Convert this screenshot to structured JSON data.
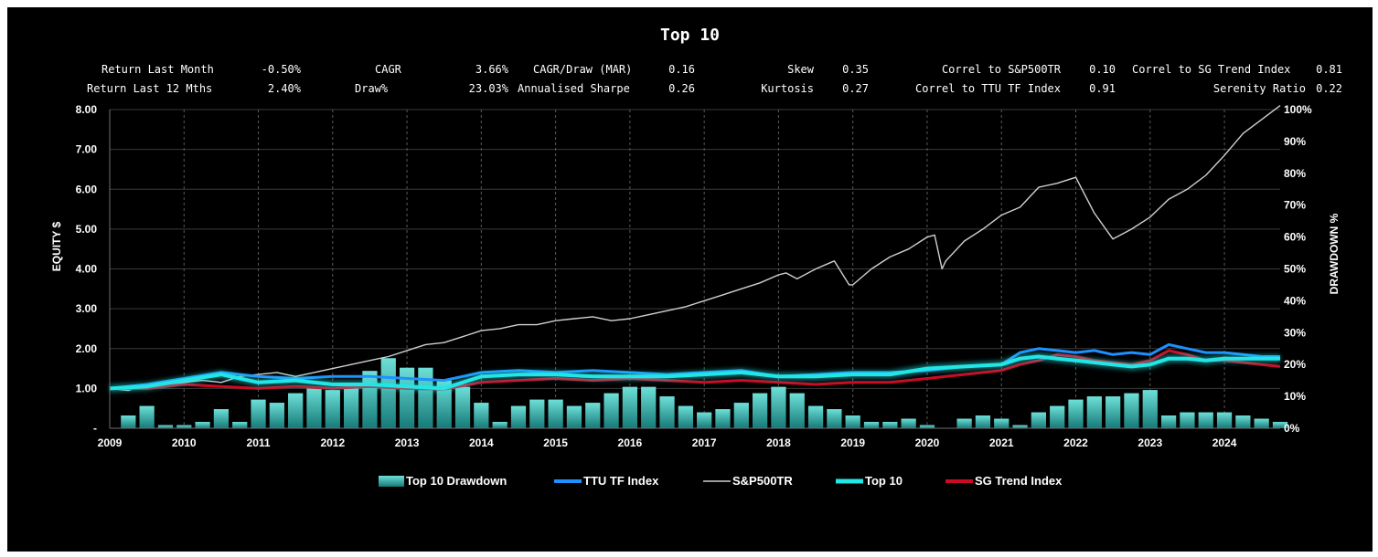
{
  "title": "Top 10",
  "stats": {
    "return_last_month_label": "Return Last Month",
    "return_last_month_value": "-0.50%",
    "return_last_12_label": "Return Last 12 Mths",
    "return_last_12_value": "2.40%",
    "cagr_label": "CAGR",
    "cagr_value": "3.66%",
    "draw_label": "Draw%",
    "draw_value": "23.03%",
    "cagr_draw_label": "CAGR/Draw (MAR)",
    "cagr_draw_value": "0.16",
    "sharpe_label": "Annualised Sharpe",
    "sharpe_value": "0.26",
    "skew_label": "Skew",
    "skew_value": "0.35",
    "kurtosis_label": "Kurtosis",
    "kurtosis_value": "0.27",
    "correl_sp_label": "Correl to S&P500TR",
    "correl_sp_value": "0.10",
    "correl_ttu_label": "Correl to TTU TF Index",
    "correl_ttu_value": "0.91",
    "correl_sg_label": "Correl to SG Trend Index",
    "correl_sg_value": "0.81",
    "serenity_label": "Serenity Ratio",
    "serenity_value": "0.22"
  },
  "colors": {
    "background": "#000000",
    "grid": "#3a3a3a",
    "drawdown": "#40c8c0",
    "ttu": "#1e90ff",
    "sp500": "#d0d0d0",
    "top10": "#22e6e6",
    "sg": "#cc0a24"
  },
  "chart_data": {
    "type": "line",
    "ylabel": "EQUITY $",
    "y2label": "DRAWDOWN %",
    "ylim": [
      0,
      8
    ],
    "y2lim": [
      0,
      100
    ],
    "yticks": [
      "-",
      "1.00",
      "2.00",
      "3.00",
      "4.00",
      "5.00",
      "6.00",
      "7.00",
      "8.00"
    ],
    "y2ticks": [
      "0%",
      "10%",
      "20%",
      "30%",
      "40%",
      "50%",
      "60%",
      "70%",
      "80%",
      "90%",
      "100%"
    ],
    "xticks": [
      "2009",
      "2010",
      "2011",
      "2012",
      "2013",
      "2014",
      "2015",
      "2016",
      "2017",
      "2018",
      "2019",
      "2020",
      "2021",
      "2022",
      "2023",
      "2024"
    ],
    "xlim": [
      2009.0,
      2024.75
    ],
    "grid": true,
    "legend_position": "bottom",
    "series": [
      {
        "name": "S&P500TR",
        "axis": "left",
        "x": [
          2009.0,
          2009.25,
          2009.5,
          2009.75,
          2010.0,
          2010.25,
          2010.5,
          2010.75,
          2011.0,
          2011.25,
          2011.5,
          2011.75,
          2012.0,
          2012.25,
          2012.5,
          2012.75,
          2013.0,
          2013.25,
          2013.5,
          2013.75,
          2014.0,
          2014.25,
          2014.5,
          2014.75,
          2015.0,
          2015.25,
          2015.5,
          2015.75,
          2016.0,
          2016.25,
          2016.5,
          2016.75,
          2017.0,
          2017.25,
          2017.5,
          2017.75,
          2018.0,
          2018.1,
          2018.25,
          2018.5,
          2018.75,
          2018.95,
          2019.0,
          2019.25,
          2019.5,
          2019.75,
          2020.0,
          2020.1,
          2020.2,
          2020.25,
          2020.5,
          2020.75,
          2021.0,
          2021.25,
          2021.5,
          2021.75,
          2022.0,
          2022.25,
          2022.5,
          2022.75,
          2023.0,
          2023.25,
          2023.5,
          2023.75,
          2024.0,
          2024.25,
          2024.5,
          2024.75
        ],
        "values": [
          1.0,
          0.95,
          1.1,
          1.05,
          1.15,
          1.2,
          1.15,
          1.3,
          1.35,
          1.4,
          1.3,
          1.4,
          1.5,
          1.6,
          1.7,
          1.8,
          1.95,
          2.1,
          2.15,
          2.3,
          2.45,
          2.5,
          2.6,
          2.6,
          2.7,
          2.75,
          2.8,
          2.7,
          2.75,
          2.85,
          2.95,
          3.05,
          3.2,
          3.35,
          3.5,
          3.65,
          3.85,
          3.9,
          3.75,
          4.0,
          4.2,
          3.6,
          3.6,
          4.0,
          4.3,
          4.5,
          4.8,
          4.85,
          4.0,
          4.2,
          4.7,
          5.0,
          5.35,
          5.55,
          6.05,
          6.15,
          6.3,
          5.4,
          4.75,
          5.0,
          5.3,
          5.75,
          6.0,
          6.35,
          6.85,
          7.4,
          7.75,
          8.1
        ]
      },
      {
        "name": "TTU TF Index",
        "axis": "left",
        "x": [
          2009.0,
          2009.5,
          2010.0,
          2010.5,
          2011.0,
          2011.5,
          2012.0,
          2012.5,
          2013.0,
          2013.5,
          2014.0,
          2014.5,
          2015.0,
          2015.5,
          2016.0,
          2016.5,
          2017.0,
          2017.5,
          2018.0,
          2018.5,
          2019.0,
          2019.5,
          2020.0,
          2020.5,
          2021.0,
          2021.25,
          2021.5,
          2021.75,
          2022.0,
          2022.25,
          2022.5,
          2022.75,
          2023.0,
          2023.25,
          2023.5,
          2023.75,
          2024.0,
          2024.25,
          2024.5,
          2024.75
        ],
        "values": [
          1.0,
          1.1,
          1.25,
          1.4,
          1.3,
          1.25,
          1.3,
          1.3,
          1.25,
          1.2,
          1.4,
          1.45,
          1.4,
          1.45,
          1.4,
          1.35,
          1.4,
          1.45,
          1.3,
          1.35,
          1.4,
          1.4,
          1.45,
          1.55,
          1.6,
          1.9,
          2.0,
          1.95,
          1.9,
          1.95,
          1.85,
          1.9,
          1.85,
          2.1,
          2.0,
          1.9,
          1.9,
          1.85,
          1.8,
          1.8
        ]
      },
      {
        "name": "Top 10",
        "axis": "left",
        "x": [
          2009.0,
          2009.5,
          2010.0,
          2010.5,
          2011.0,
          2011.5,
          2012.0,
          2012.5,
          2013.0,
          2013.5,
          2014.0,
          2014.5,
          2015.0,
          2015.5,
          2016.0,
          2016.5,
          2017.0,
          2017.5,
          2018.0,
          2018.5,
          2019.0,
          2019.5,
          2020.0,
          2020.5,
          2021.0,
          2021.25,
          2021.5,
          2021.75,
          2022.0,
          2022.25,
          2022.5,
          2022.75,
          2023.0,
          2023.25,
          2023.5,
          2023.75,
          2024.0,
          2024.25,
          2024.5,
          2024.75
        ],
        "values": [
          1.0,
          1.05,
          1.2,
          1.35,
          1.15,
          1.2,
          1.1,
          1.1,
          1.05,
          1.0,
          1.3,
          1.35,
          1.35,
          1.3,
          1.3,
          1.3,
          1.35,
          1.4,
          1.3,
          1.3,
          1.35,
          1.35,
          1.5,
          1.55,
          1.6,
          1.75,
          1.8,
          1.75,
          1.7,
          1.65,
          1.6,
          1.55,
          1.6,
          1.75,
          1.75,
          1.7,
          1.75,
          1.75,
          1.75,
          1.75
        ]
      },
      {
        "name": "SG Trend Index",
        "axis": "left",
        "x": [
          2009.0,
          2009.5,
          2010.0,
          2010.5,
          2011.0,
          2011.5,
          2012.0,
          2012.5,
          2013.0,
          2013.5,
          2014.0,
          2014.5,
          2015.0,
          2015.5,
          2016.0,
          2016.5,
          2017.0,
          2017.5,
          2018.0,
          2018.5,
          2019.0,
          2019.5,
          2020.0,
          2020.5,
          2021.0,
          2021.25,
          2021.5,
          2021.75,
          2022.0,
          2022.25,
          2022.5,
          2022.75,
          2023.0,
          2023.25,
          2023.5,
          2023.75,
          2024.0,
          2024.25,
          2024.5,
          2024.75
        ],
        "values": [
          1.0,
          1.0,
          1.1,
          1.05,
          1.0,
          1.05,
          1.0,
          1.05,
          1.0,
          0.98,
          1.15,
          1.2,
          1.25,
          1.2,
          1.25,
          1.2,
          1.15,
          1.2,
          1.15,
          1.1,
          1.15,
          1.15,
          1.25,
          1.35,
          1.45,
          1.6,
          1.7,
          1.85,
          1.8,
          1.7,
          1.65,
          1.6,
          1.7,
          1.95,
          1.85,
          1.7,
          1.7,
          1.65,
          1.6,
          1.55
        ]
      }
    ],
    "drawdown": {
      "name": "Top 10 Drawdown",
      "axis": "right",
      "x": [
        2009.25,
        2009.5,
        2009.75,
        2010.0,
        2010.25,
        2010.5,
        2010.75,
        2011.0,
        2011.25,
        2011.5,
        2011.75,
        2012.0,
        2012.25,
        2012.5,
        2012.75,
        2013.0,
        2013.25,
        2013.5,
        2013.75,
        2014.0,
        2014.25,
        2014.5,
        2014.75,
        2015.0,
        2015.25,
        2015.5,
        2015.75,
        2016.0,
        2016.25,
        2016.5,
        2016.75,
        2017.0,
        2017.25,
        2017.5,
        2017.75,
        2018.0,
        2018.25,
        2018.5,
        2018.75,
        2019.0,
        2019.25,
        2019.5,
        2019.75,
        2020.0,
        2020.25,
        2020.5,
        2020.75,
        2021.0,
        2021.25,
        2021.5,
        2021.75,
        2022.0,
        2022.25,
        2022.5,
        2022.75,
        2023.0,
        2023.25,
        2023.5,
        2023.75,
        2024.0,
        2024.25,
        2024.5,
        2024.75
      ],
      "values": [
        4,
        7,
        1,
        1,
        2,
        6,
        2,
        9,
        8,
        11,
        13,
        12,
        13,
        18,
        22,
        19,
        19,
        15,
        13,
        8,
        2,
        7,
        9,
        9,
        7,
        8,
        11,
        13,
        13,
        10,
        7,
        5,
        6,
        8,
        11,
        13,
        11,
        7,
        6,
        4,
        2,
        2,
        3,
        1,
        0,
        3,
        4,
        3,
        1,
        5,
        7,
        9,
        10,
        10,
        11,
        12,
        4,
        5,
        5,
        5,
        4,
        3,
        2
      ]
    }
  },
  "legend": {
    "drawdown": "Top 10 Drawdown",
    "ttu": "TTU TF Index",
    "sp500": "S&P500TR",
    "top10": "Top 10",
    "sg": "SG Trend Index"
  }
}
